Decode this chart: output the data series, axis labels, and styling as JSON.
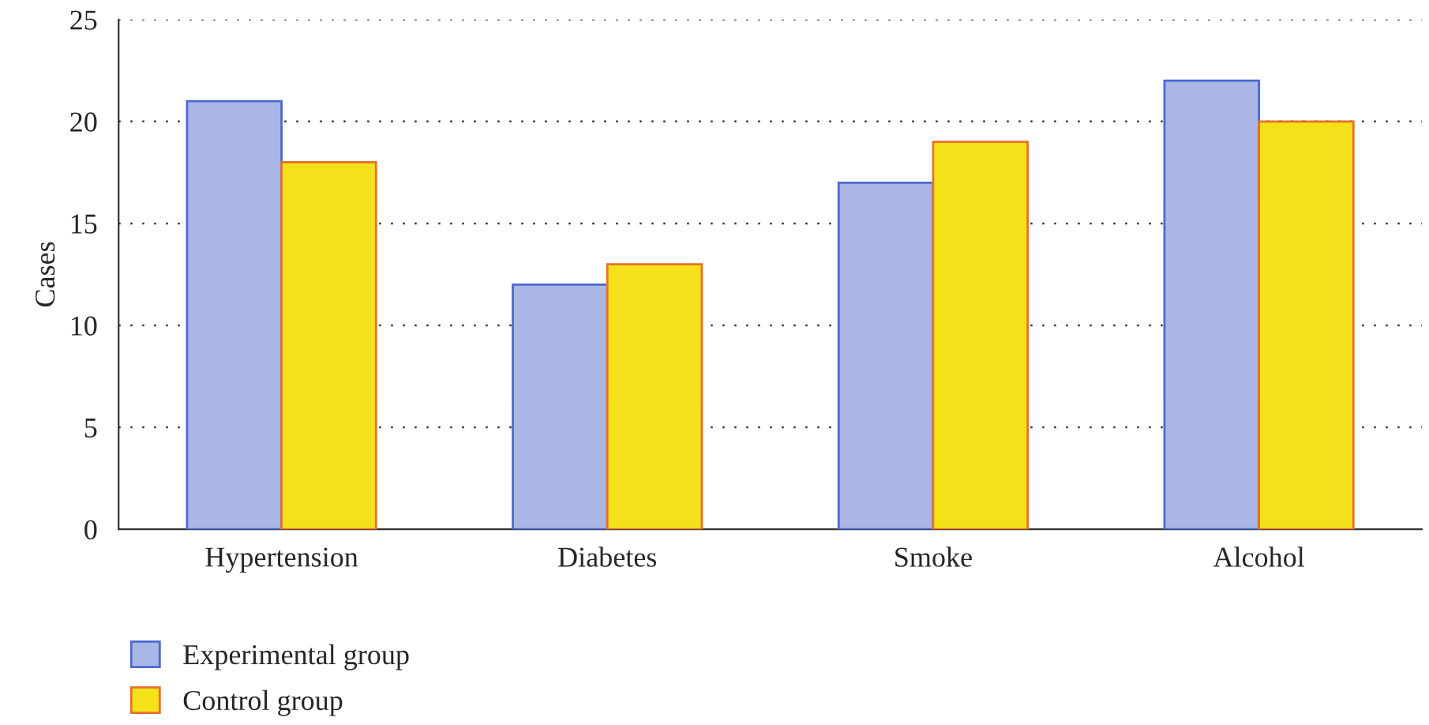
{
  "chart_data": {
    "type": "bar",
    "ylabel": "Cases",
    "categories": [
      "Hypertension",
      "Diabetes",
      "Smoke",
      "Alcohol"
    ],
    "series": [
      {
        "name": "Experimental group",
        "color": "#aab6e6",
        "values": [
          21,
          12,
          17,
          22
        ]
      },
      {
        "name": "Control group",
        "color": "#f4e11a",
        "values": [
          18,
          13,
          19,
          20
        ]
      }
    ],
    "ylim": [
      0,
      25
    ],
    "yticks": [
      0,
      5,
      10,
      15,
      20,
      25
    ],
    "grid": "y",
    "legend": "bottom left"
  }
}
